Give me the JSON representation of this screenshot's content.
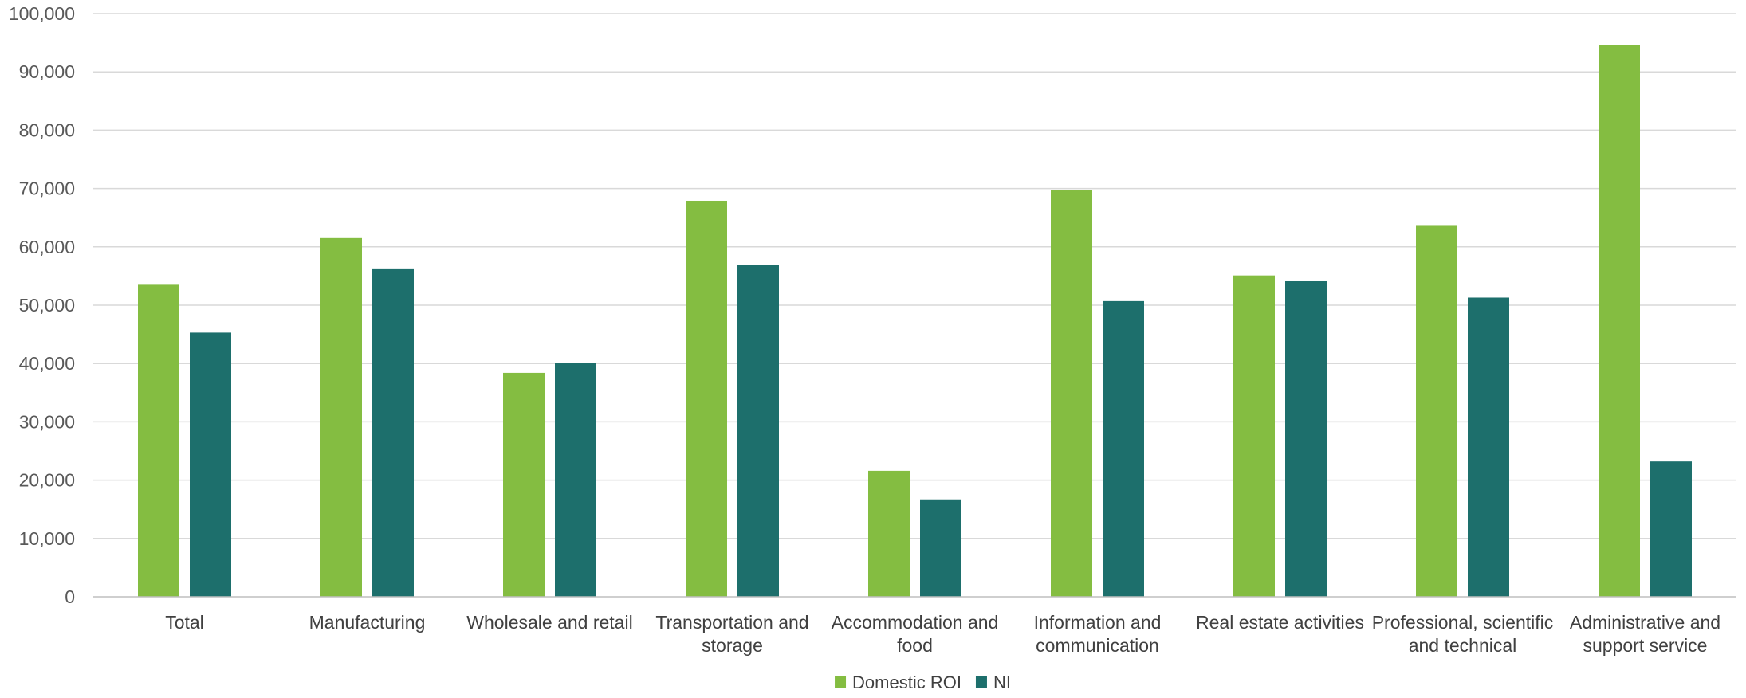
{
  "chart_data": {
    "type": "bar",
    "title": "",
    "xlabel": "",
    "ylabel": "",
    "ylim": [
      0,
      100000
    ],
    "yticks": [
      0,
      10000,
      20000,
      30000,
      40000,
      50000,
      60000,
      70000,
      80000,
      90000,
      100000
    ],
    "ytick_labels": [
      "0",
      "10,000",
      "20,000",
      "30,000",
      "40,000",
      "50,000",
      "60,000",
      "70,000",
      "80,000",
      "90,000",
      "100,000"
    ],
    "grid": true,
    "legend_position": "bottom-center",
    "categories": [
      [
        "Total"
      ],
      [
        "Manufacturing"
      ],
      [
        "Wholesale and retail"
      ],
      [
        "Transportation and",
        "storage"
      ],
      [
        "Accommodation and",
        "food"
      ],
      [
        "Information and",
        "communication"
      ],
      [
        "Real estate activities"
      ],
      [
        "Professional, scientific",
        "and technical"
      ],
      [
        "Administrative and",
        "support service"
      ]
    ],
    "series": [
      {
        "name": "Domestic ROI",
        "color": "#84bd41",
        "values": [
          53500,
          61500,
          38400,
          67900,
          21600,
          69700,
          55100,
          63600,
          94600
        ]
      },
      {
        "name": "NI",
        "color": "#1d6f6c",
        "values": [
          45300,
          56300,
          40100,
          56900,
          16700,
          50700,
          54100,
          51300,
          23200
        ]
      }
    ]
  }
}
